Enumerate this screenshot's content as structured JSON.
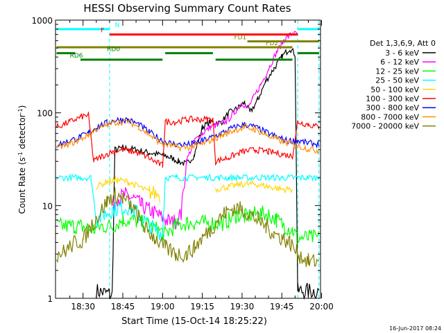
{
  "chart_data": {
    "type": "line",
    "title": "HESSI Observing Summary Count Rates",
    "xlabel": "Start Time (15-Oct-14 18:25:22)",
    "ylabel_main": "Count Rate (s",
    "ylabel_sup1": "-1",
    "ylabel_mid": " detector",
    "ylabel_sup2": "-1",
    "ylabel_end": ")",
    "y_scale": "log",
    "ylim": [
      1,
      1000
    ],
    "xlim_minutes": [
      -5.4,
      94.6
    ],
    "x_tick_minutes": [
      5,
      20,
      35,
      50,
      65,
      80,
      95
    ],
    "x_tick_labels": [
      "18:30",
      "18:45",
      "19:00",
      "19:15",
      "19:30",
      "19:45",
      "20:00"
    ],
    "y_tick_values": [
      1,
      10,
      100,
      1000
    ],
    "y_tick_labels": [
      "1",
      "10",
      "100",
      "1000"
    ],
    "timestamp": "16-Jun-2017 08:24",
    "legend_title": "Det 1,3,6,9, Att 0",
    "series": [
      {
        "name": "3 - 6 keV",
        "color": "#000000",
        "points": [
          [
            -5,
            null
          ],
          [
            4,
            null
          ],
          [
            10,
            1.2
          ],
          [
            16,
            1.1
          ],
          [
            17,
            40
          ],
          [
            20,
            42
          ],
          [
            25,
            40
          ],
          [
            30,
            37
          ],
          [
            35,
            35
          ],
          [
            38,
            33
          ],
          [
            41,
            30
          ],
          [
            44,
            28
          ],
          [
            47,
            35
          ],
          [
            50,
            70
          ],
          [
            53,
            80
          ],
          [
            57,
            78
          ],
          [
            60,
            100
          ],
          [
            63,
            110
          ],
          [
            66,
            130
          ],
          [
            68,
            100
          ],
          [
            71,
            140
          ],
          [
            74,
            220
          ],
          [
            77,
            300
          ],
          [
            80,
            400
          ],
          [
            83,
            500
          ],
          [
            85,
            430
          ],
          [
            86,
            1.2
          ],
          [
            94,
            1.2
          ]
        ]
      },
      {
        "name": "6 - 12 keV",
        "color": "#ff00ff",
        "points": [
          [
            -5,
            null
          ],
          [
            15,
            null
          ],
          [
            16,
            10
          ],
          [
            18,
            12
          ],
          [
            21,
            13
          ],
          [
            24,
            12
          ],
          [
            27,
            10
          ],
          [
            30,
            9
          ],
          [
            33,
            8
          ],
          [
            36,
            7
          ],
          [
            39,
            6.5
          ],
          [
            42,
            8
          ],
          [
            44,
            30
          ],
          [
            47,
            50
          ],
          [
            50,
            60
          ],
          [
            53,
            70
          ],
          [
            56,
            75
          ],
          [
            59,
            80
          ],
          [
            62,
            100
          ],
          [
            65,
            130
          ],
          [
            67,
            110
          ],
          [
            69,
            140
          ],
          [
            72,
            200
          ],
          [
            75,
            300
          ],
          [
            78,
            450
          ],
          [
            81,
            620
          ],
          [
            84,
            720
          ],
          [
            86,
            700
          ],
          [
            87,
            null
          ],
          [
            94,
            null
          ]
        ]
      },
      {
        "name": "12 - 25 keV",
        "color": "#00ff00",
        "points": [
          [
            -5,
            6
          ],
          [
            2,
            6
          ],
          [
            4,
            6
          ],
          [
            9,
            5.5
          ],
          [
            12,
            6
          ],
          [
            16,
            6
          ],
          [
            20,
            7
          ],
          [
            24,
            7
          ],
          [
            27,
            6.5
          ],
          [
            30,
            6
          ],
          [
            33,
            5.5
          ],
          [
            36,
            5
          ],
          [
            40,
            6
          ],
          [
            44,
            6.5
          ],
          [
            47,
            6.5
          ],
          [
            51,
            6.5
          ],
          [
            55,
            6.5
          ],
          [
            58,
            6.5
          ],
          [
            60,
            7
          ],
          [
            63,
            8
          ],
          [
            66,
            7.5
          ],
          [
            69,
            8
          ],
          [
            72,
            8.2
          ],
          [
            75,
            8
          ],
          [
            78,
            7
          ],
          [
            81,
            6
          ],
          [
            84,
            5.5
          ],
          [
            86,
            4.5
          ],
          [
            94,
            4.5
          ]
        ]
      },
      {
        "name": "25 - 50 keV",
        "color": "#00ffff",
        "points": [
          [
            -5,
            20
          ],
          [
            2,
            20
          ],
          [
            4,
            20
          ],
          [
            6,
            20
          ],
          [
            8,
            20
          ],
          [
            10,
            7
          ],
          [
            13,
            8
          ],
          [
            16,
            9
          ],
          [
            19,
            9.5
          ],
          [
            22,
            9.5
          ],
          [
            25,
            8.5
          ],
          [
            28,
            7
          ],
          [
            32,
            5.5
          ],
          [
            35,
            5
          ],
          [
            36,
            20
          ],
          [
            40,
            20
          ],
          [
            44,
            20
          ],
          [
            48,
            20
          ],
          [
            52,
            20
          ],
          [
            56,
            20
          ],
          [
            60,
            20
          ],
          [
            64,
            20
          ],
          [
            68,
            20
          ],
          [
            72,
            20
          ],
          [
            76,
            20
          ],
          [
            80,
            20
          ],
          [
            84,
            20
          ],
          [
            86,
            20
          ],
          [
            90,
            20
          ],
          [
            94,
            20
          ]
        ]
      },
      {
        "name": "50 - 100 keV",
        "color": "#ffd700",
        "points": [
          [
            4,
            null
          ],
          [
            5,
            null
          ],
          [
            10,
            16
          ],
          [
            14,
            18
          ],
          [
            18,
            19
          ],
          [
            22,
            18
          ],
          [
            26,
            16
          ],
          [
            30,
            14
          ],
          [
            34,
            13
          ],
          [
            35,
            null
          ],
          [
            54,
            null
          ],
          [
            55,
            15
          ],
          [
            60,
            16
          ],
          [
            65,
            17
          ],
          [
            70,
            17
          ],
          [
            75,
            16
          ],
          [
            80,
            15
          ],
          [
            84,
            15
          ],
          [
            85,
            null
          ],
          [
            94,
            null
          ]
        ]
      },
      {
        "name": "100 - 300 keV",
        "color": "#ff0000",
        "points": [
          [
            -5,
            70
          ],
          [
            0,
            80
          ],
          [
            4,
            90
          ],
          [
            7,
            95
          ],
          [
            9,
            30
          ],
          [
            12,
            34
          ],
          [
            16,
            38
          ],
          [
            20,
            40
          ],
          [
            24,
            38
          ],
          [
            28,
            35
          ],
          [
            32,
            30
          ],
          [
            35,
            27
          ],
          [
            36,
            80
          ],
          [
            40,
            80
          ],
          [
            44,
            85
          ],
          [
            48,
            85
          ],
          [
            52,
            85
          ],
          [
            54,
            85
          ],
          [
            55,
            30
          ],
          [
            60,
            33
          ],
          [
            65,
            38
          ],
          [
            70,
            40
          ],
          [
            75,
            38
          ],
          [
            80,
            36
          ],
          [
            84,
            34
          ],
          [
            86,
            80
          ],
          [
            90,
            75
          ],
          [
            94,
            70
          ]
        ]
      },
      {
        "name": "300 - 800 keV",
        "color": "#0000ff",
        "points": [
          [
            -5,
            45
          ],
          [
            0,
            50
          ],
          [
            4,
            55
          ],
          [
            7,
            60
          ],
          [
            10,
            70
          ],
          [
            14,
            78
          ],
          [
            18,
            85
          ],
          [
            22,
            84
          ],
          [
            26,
            75
          ],
          [
            30,
            62
          ],
          [
            34,
            52
          ],
          [
            38,
            47
          ],
          [
            42,
            45
          ],
          [
            46,
            46
          ],
          [
            50,
            50
          ],
          [
            54,
            55
          ],
          [
            58,
            62
          ],
          [
            62,
            70
          ],
          [
            66,
            75
          ],
          [
            70,
            70
          ],
          [
            74,
            62
          ],
          [
            78,
            55
          ],
          [
            82,
            50
          ],
          [
            86,
            50
          ],
          [
            90,
            47
          ],
          [
            94,
            46
          ]
        ]
      },
      {
        "name": "800 - 7000 keV",
        "color": "#ff8c00",
        "points": [
          [
            -5,
            42
          ],
          [
            0,
            46
          ],
          [
            4,
            52
          ],
          [
            7,
            58
          ],
          [
            10,
            66
          ],
          [
            14,
            74
          ],
          [
            18,
            80
          ],
          [
            22,
            80
          ],
          [
            26,
            71
          ],
          [
            30,
            58
          ],
          [
            34,
            48
          ],
          [
            38,
            44
          ],
          [
            42,
            42
          ],
          [
            46,
            43
          ],
          [
            50,
            46
          ],
          [
            54,
            52
          ],
          [
            58,
            58
          ],
          [
            62,
            65
          ],
          [
            66,
            70
          ],
          [
            70,
            66
          ],
          [
            74,
            58
          ],
          [
            78,
            52
          ],
          [
            82,
            47
          ],
          [
            86,
            44
          ],
          [
            90,
            41
          ],
          [
            94,
            39
          ]
        ]
      },
      {
        "name": "7000 - 20000 keV",
        "color": "#808000",
        "points": [
          [
            -5,
            3
          ],
          [
            -2,
            3.2
          ],
          [
            2,
            4
          ],
          [
            5,
            4.2
          ],
          [
            8,
            6
          ],
          [
            11,
            8
          ],
          [
            14,
            11
          ],
          [
            17,
            13
          ],
          [
            20,
            12
          ],
          [
            23,
            10
          ],
          [
            26,
            7.5
          ],
          [
            29,
            5.5
          ],
          [
            32,
            4.5
          ],
          [
            36,
            3.5
          ],
          [
            40,
            3
          ],
          [
            44,
            3
          ],
          [
            47,
            3.5
          ],
          [
            50,
            4.5
          ],
          [
            53,
            5.5
          ],
          [
            56,
            7
          ],
          [
            59,
            8.5
          ],
          [
            62,
            9.5
          ],
          [
            65,
            9
          ],
          [
            68,
            8
          ],
          [
            71,
            7
          ],
          [
            74,
            6
          ],
          [
            77,
            5
          ],
          [
            80,
            4.5
          ],
          [
            83,
            4
          ],
          [
            86,
            3
          ],
          [
            90,
            2.5
          ],
          [
            94,
            2.5
          ]
        ]
      }
    ],
    "state_bars": [
      {
        "label": "N",
        "color": "#00ffff",
        "y": 800,
        "segments": [
          [
            -5,
            15
          ],
          [
            86,
            94
          ]
        ]
      },
      {
        "label": "F",
        "color": "#ff0000",
        "y": 700,
        "segments": [
          [
            15,
            86
          ]
        ]
      },
      {
        "label": "FD1",
        "color": "#808000",
        "y": 590,
        "segments": [
          [
            67,
            94
          ]
        ]
      },
      {
        "label": "FD2",
        "color": "#808000",
        "y": 510,
        "segments": [
          [
            -5,
            84
          ]
        ]
      },
      {
        "label": "RD0",
        "color": "#008000",
        "y": 440,
        "segments": [
          [
            -5,
            2
          ],
          [
            36,
            54
          ],
          [
            86,
            94
          ]
        ]
      },
      {
        "label": "RD6",
        "color": "#008000",
        "y": 375,
        "segments": [
          [
            4,
            35
          ],
          [
            55,
            84
          ]
        ]
      }
    ],
    "dashed_vlines_minutes": [
      15,
      86,
      94
    ]
  }
}
